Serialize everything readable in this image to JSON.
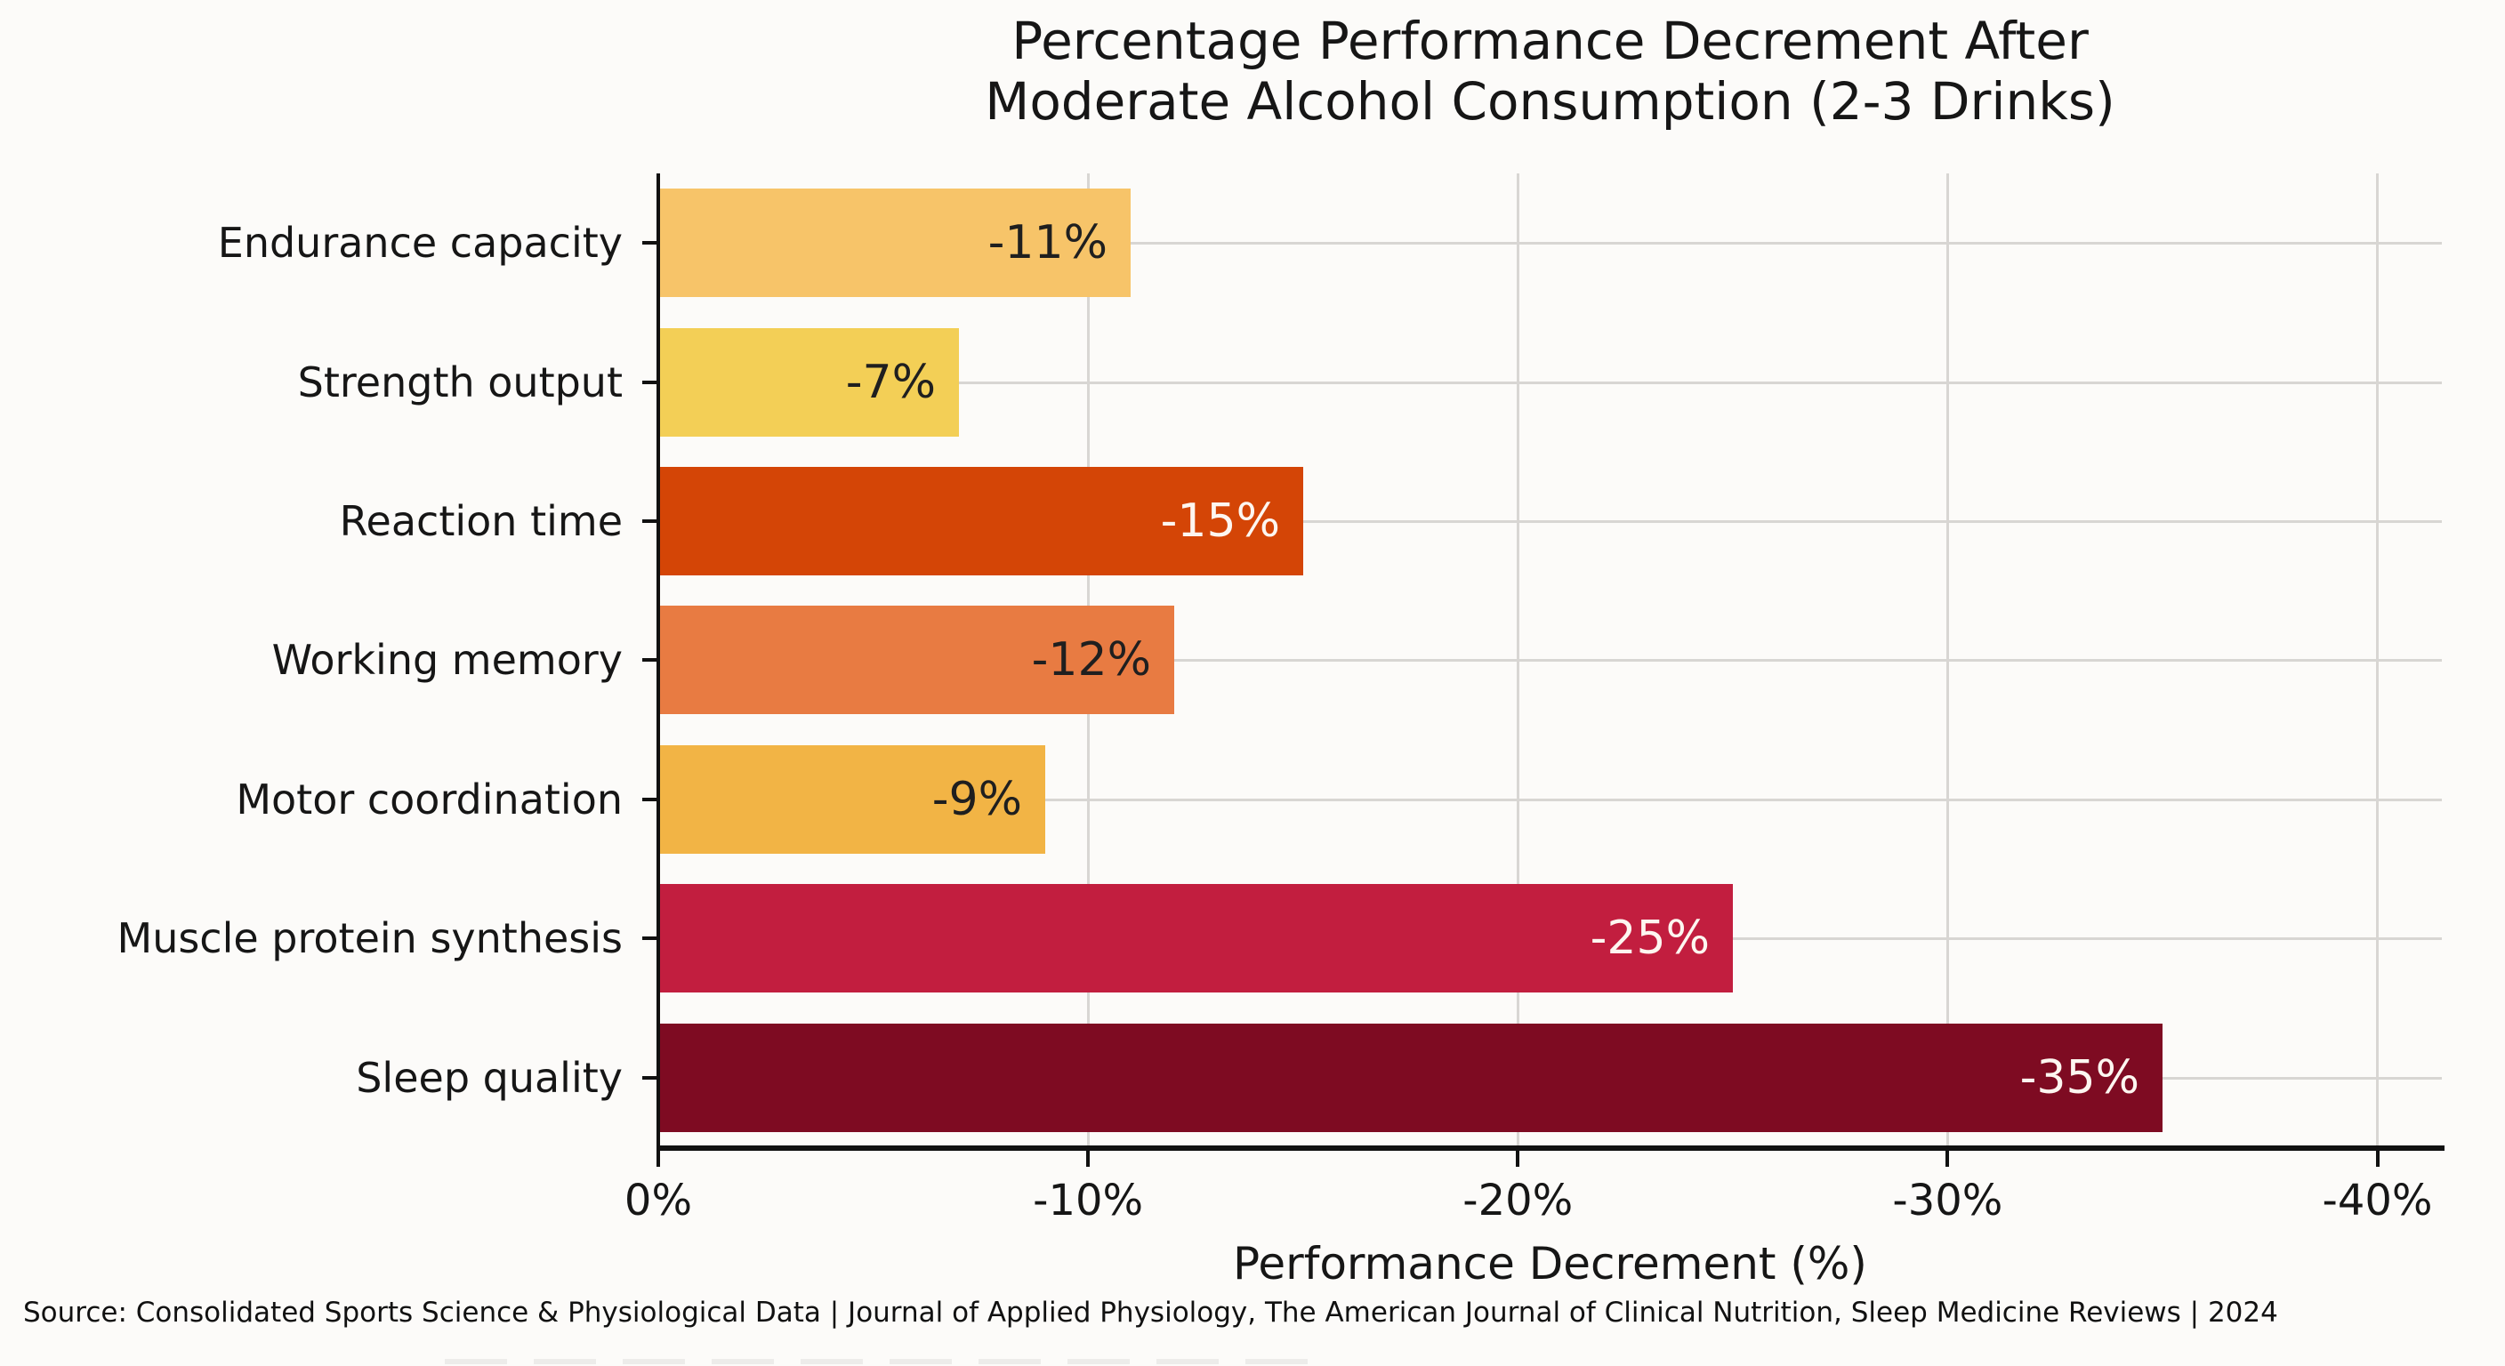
{
  "title": {
    "line1": "Percentage Performance Decrement After",
    "line2": "Moderate Alcohol Consumption (2-3 Drinks)"
  },
  "chart_data": {
    "type": "bar",
    "orientation": "horizontal",
    "title": "Percentage Performance Decrement After Moderate Alcohol Consumption (2-3 Drinks)",
    "xlabel": "Performance Decrement (%)",
    "ylabel": "",
    "categories": [
      "Endurance capacity",
      "Strength output",
      "Reaction time",
      "Working memory",
      "Motor coordination",
      "Muscle protein synthesis",
      "Sleep quality"
    ],
    "values": [
      -11,
      -7,
      -15,
      -12,
      -9,
      -25,
      -35
    ],
    "bars": [
      {
        "label": "Endurance capacity",
        "value": -11,
        "display": "-11%",
        "color": "#F7C469",
        "label_color": "#1f1f1f"
      },
      {
        "label": "Strength output",
        "value": -7,
        "display": "-7%",
        "color": "#F3CF56",
        "label_color": "#1f1f1f"
      },
      {
        "label": "Reaction time",
        "value": -15,
        "display": "-15%",
        "color": "#D44506",
        "label_color": "#fdf6f0"
      },
      {
        "label": "Working memory",
        "value": -12,
        "display": "-12%",
        "color": "#E87B42",
        "label_color": "#1f1f1f"
      },
      {
        "label": "Motor coordination",
        "value": -9,
        "display": "-9%",
        "color": "#F2B445",
        "label_color": "#1f1f1f"
      },
      {
        "label": "Muscle protein synthesis",
        "value": -25,
        "display": "-25%",
        "color": "#C21E3F",
        "label_color": "#fdf6f0"
      },
      {
        "label": "Sleep quality",
        "value": -35,
        "display": "-35%",
        "color": "#7E0B22",
        "label_color": "#fdf6f0"
      }
    ],
    "x_ticks": [
      {
        "value": 0,
        "label": "0%"
      },
      {
        "value": -10,
        "label": "-10%"
      },
      {
        "value": -20,
        "label": "-20%"
      },
      {
        "value": -30,
        "label": "-30%"
      },
      {
        "value": -40,
        "label": "-40%"
      }
    ],
    "xlim": [
      0,
      -41.5
    ],
    "grid": true,
    "gridline_color": "#d8d6d3",
    "bar_height_fraction": 0.78
  },
  "source": "Source: Consolidated Sports Science & Physiological Data | Journal of Applied Physiology, The American Journal of Clinical Nutrition, Sleep Medicine Reviews | 2024"
}
